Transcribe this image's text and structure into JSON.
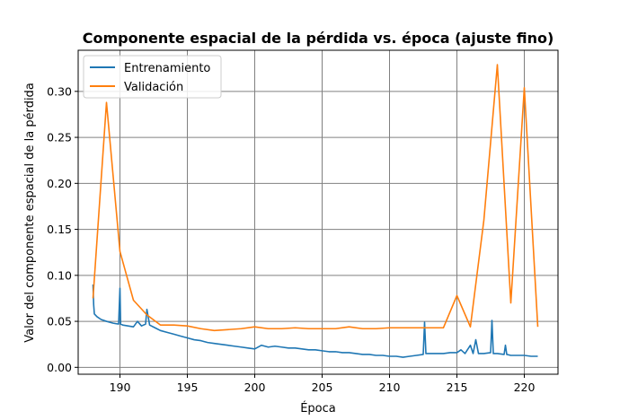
{
  "chart_data": {
    "type": "line",
    "title": "Componente espacial de la pérdida vs. época (ajuste fino)",
    "xlabel": "Época",
    "ylabel": "Valor del componente espacial de la pérdida",
    "xlim": [
      186.9,
      222.5
    ],
    "ylim": [
      -0.0075,
      0.3447
    ],
    "xticks": [
      190,
      195,
      200,
      205,
      210,
      215,
      220
    ],
    "yticks": [
      0.0,
      0.05,
      0.1,
      0.15,
      0.2,
      0.25,
      0.3
    ],
    "xtick_labels": [
      "190",
      "195",
      "200",
      "205",
      "210",
      "215",
      "220"
    ],
    "ytick_labels": [
      "0.00",
      "0.05",
      "0.10",
      "0.15",
      "0.20",
      "0.25",
      "0.30"
    ],
    "grid": true,
    "legend_position": "top-left",
    "series": [
      {
        "name": "Entrenamiento",
        "color": "#1f77b4",
        "x": [
          188.0,
          188.05,
          188.1,
          188.3,
          188.6,
          189.0,
          189.5,
          189.9,
          190.0,
          190.05,
          190.2,
          190.6,
          191.0,
          191.3,
          191.6,
          191.9,
          192.0,
          192.2,
          192.6,
          193.0,
          193.5,
          194.0,
          194.5,
          195.0,
          195.5,
          196.0,
          196.5,
          197.0,
          197.5,
          198.0,
          198.5,
          199.0,
          199.5,
          200.0,
          200.5,
          201.0,
          201.5,
          202.0,
          202.5,
          203.0,
          203.5,
          204.0,
          204.5,
          205.0,
          205.5,
          206.0,
          206.5,
          207.0,
          207.5,
          208.0,
          208.5,
          209.0,
          209.5,
          210.0,
          210.5,
          211.0,
          211.5,
          212.0,
          212.5,
          212.6,
          212.7,
          213.0,
          213.5,
          214.0,
          214.5,
          215.0,
          215.3,
          215.6,
          216.0,
          216.2,
          216.4,
          216.6,
          217.0,
          217.5,
          217.6,
          217.7,
          218.0,
          218.5,
          218.6,
          218.7,
          219.0,
          219.5,
          220.0,
          220.5,
          221.0
        ],
        "y": [
          0.09,
          0.068,
          0.058,
          0.055,
          0.052,
          0.05,
          0.048,
          0.047,
          0.086,
          0.047,
          0.046,
          0.045,
          0.044,
          0.05,
          0.045,
          0.047,
          0.063,
          0.046,
          0.043,
          0.04,
          0.038,
          0.036,
          0.034,
          0.032,
          0.03,
          0.029,
          0.027,
          0.026,
          0.025,
          0.024,
          0.023,
          0.022,
          0.021,
          0.02,
          0.024,
          0.022,
          0.023,
          0.022,
          0.021,
          0.021,
          0.02,
          0.019,
          0.019,
          0.018,
          0.017,
          0.017,
          0.016,
          0.016,
          0.015,
          0.014,
          0.014,
          0.013,
          0.013,
          0.012,
          0.012,
          0.011,
          0.012,
          0.013,
          0.014,
          0.049,
          0.015,
          0.015,
          0.015,
          0.015,
          0.016,
          0.016,
          0.019,
          0.015,
          0.024,
          0.015,
          0.03,
          0.015,
          0.015,
          0.016,
          0.051,
          0.015,
          0.015,
          0.014,
          0.024,
          0.014,
          0.013,
          0.013,
          0.013,
          0.012,
          0.012
        ]
      },
      {
        "name": "Validación",
        "color": "#ff7f0e",
        "x": [
          188,
          189,
          190,
          191,
          192,
          193,
          194,
          195,
          196,
          197,
          198,
          199,
          200,
          201,
          202,
          203,
          204,
          205,
          206,
          207,
          208,
          209,
          210,
          211,
          212,
          213,
          214,
          215,
          216,
          217,
          218,
          219,
          220,
          221
        ],
        "y": [
          0.075,
          0.288,
          0.126,
          0.073,
          0.057,
          0.046,
          0.046,
          0.045,
          0.042,
          0.04,
          0.041,
          0.042,
          0.044,
          0.042,
          0.042,
          0.043,
          0.042,
          0.042,
          0.042,
          0.044,
          0.042,
          0.042,
          0.043,
          0.043,
          0.043,
          0.043,
          0.043,
          0.078,
          0.044,
          0.16,
          0.329,
          0.07,
          0.304,
          0.044
        ]
      }
    ]
  }
}
